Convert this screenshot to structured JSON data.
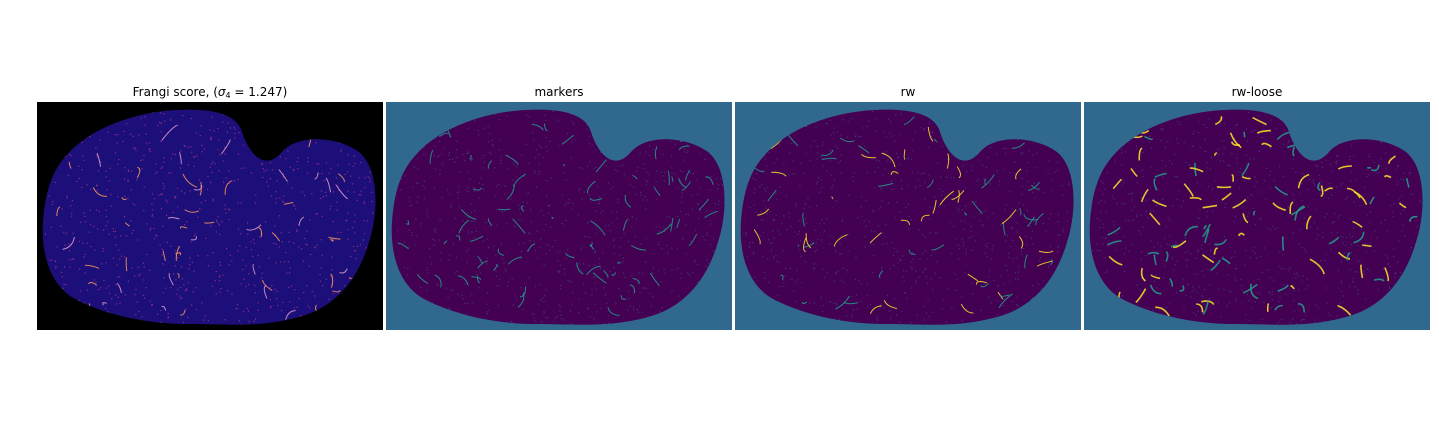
{
  "panels": [
    {
      "title_prefix": "Frangi score, (",
      "title_sigma": "σ",
      "title_sub": "4",
      "title_suffix": " = 1.247)",
      "background": "#000000",
      "tissue_color": "#1c0f7a",
      "accent_colors": [
        "#e8a0c8",
        "#ff9a5c",
        "#c03a8a"
      ]
    },
    {
      "title": "markers",
      "background": "#31688e",
      "tissue_color": "#440154",
      "accent_colors": [
        "#21a08a",
        "#3e4989"
      ]
    },
    {
      "title": "rw",
      "background": "#31688e",
      "tissue_color": "#440154",
      "accent_colors": [
        "#21a08a",
        "#fde725",
        "#3e4989"
      ]
    },
    {
      "title": "rw-loose",
      "background": "#31688e",
      "tissue_color": "#440154",
      "accent_colors": [
        "#fde725",
        "#21a08a",
        "#3e4989"
      ]
    }
  ]
}
